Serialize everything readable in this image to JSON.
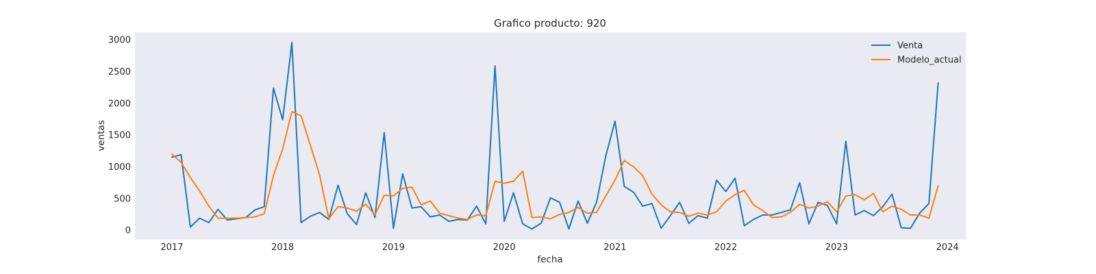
{
  "chart_data": {
    "type": "line",
    "title": "Grafico producto: 920",
    "xlabel": "fecha",
    "ylabel": "ventas",
    "x_start": "2017-01",
    "x_step": "month",
    "xlim": [
      "2016-09",
      "2024-03"
    ],
    "ylim": [
      -150,
      3120
    ],
    "x_ticks": [
      "2017",
      "2018",
      "2019",
      "2020",
      "2021",
      "2022",
      "2023",
      "2024"
    ],
    "y_ticks": [
      0,
      500,
      1000,
      1500,
      2000,
      2500,
      3000
    ],
    "grid": false,
    "background": "#eaeaf2",
    "legend": {
      "position": "top-right"
    },
    "series": [
      {
        "name": "Venta",
        "color": "#1f77b4",
        "values": [
          1150,
          1190,
          50,
          190,
          120,
          330,
          160,
          180,
          200,
          320,
          370,
          2240,
          1740,
          2960,
          120,
          220,
          280,
          170,
          710,
          260,
          90,
          590,
          200,
          1540,
          30,
          890,
          350,
          370,
          210,
          240,
          140,
          170,
          160,
          380,
          100,
          2590,
          140,
          590,
          100,
          20,
          110,
          510,
          440,
          20,
          460,
          110,
          440,
          1170,
          1720,
          690,
          600,
          380,
          420,
          30,
          230,
          440,
          110,
          230,
          190,
          790,
          610,
          820,
          70,
          170,
          240,
          240,
          280,
          320,
          750,
          100,
          440,
          390,
          100,
          1400,
          240,
          310,
          230,
          370,
          570,
          40,
          30,
          270,
          420,
          2320
        ]
      },
      {
        "name": "Modelo_actual",
        "color": "#ff7f0e",
        "values": [
          1200,
          1070,
          830,
          620,
          380,
          190,
          190,
          190,
          200,
          210,
          260,
          860,
          1280,
          1870,
          1800,
          1340,
          870,
          180,
          370,
          350,
          300,
          410,
          240,
          550,
          540,
          660,
          680,
          400,
          460,
          270,
          230,
          190,
          170,
          240,
          230,
          770,
          740,
          770,
          930,
          200,
          210,
          180,
          250,
          280,
          360,
          270,
          280,
          540,
          790,
          1100,
          1000,
          860,
          570,
          400,
          290,
          280,
          220,
          270,
          240,
          290,
          460,
          560,
          630,
          400,
          310,
          200,
          210,
          280,
          410,
          350,
          380,
          450,
          290,
          540,
          560,
          480,
          580,
          290,
          380,
          330,
          240,
          240,
          190,
          700
        ]
      }
    ]
  }
}
